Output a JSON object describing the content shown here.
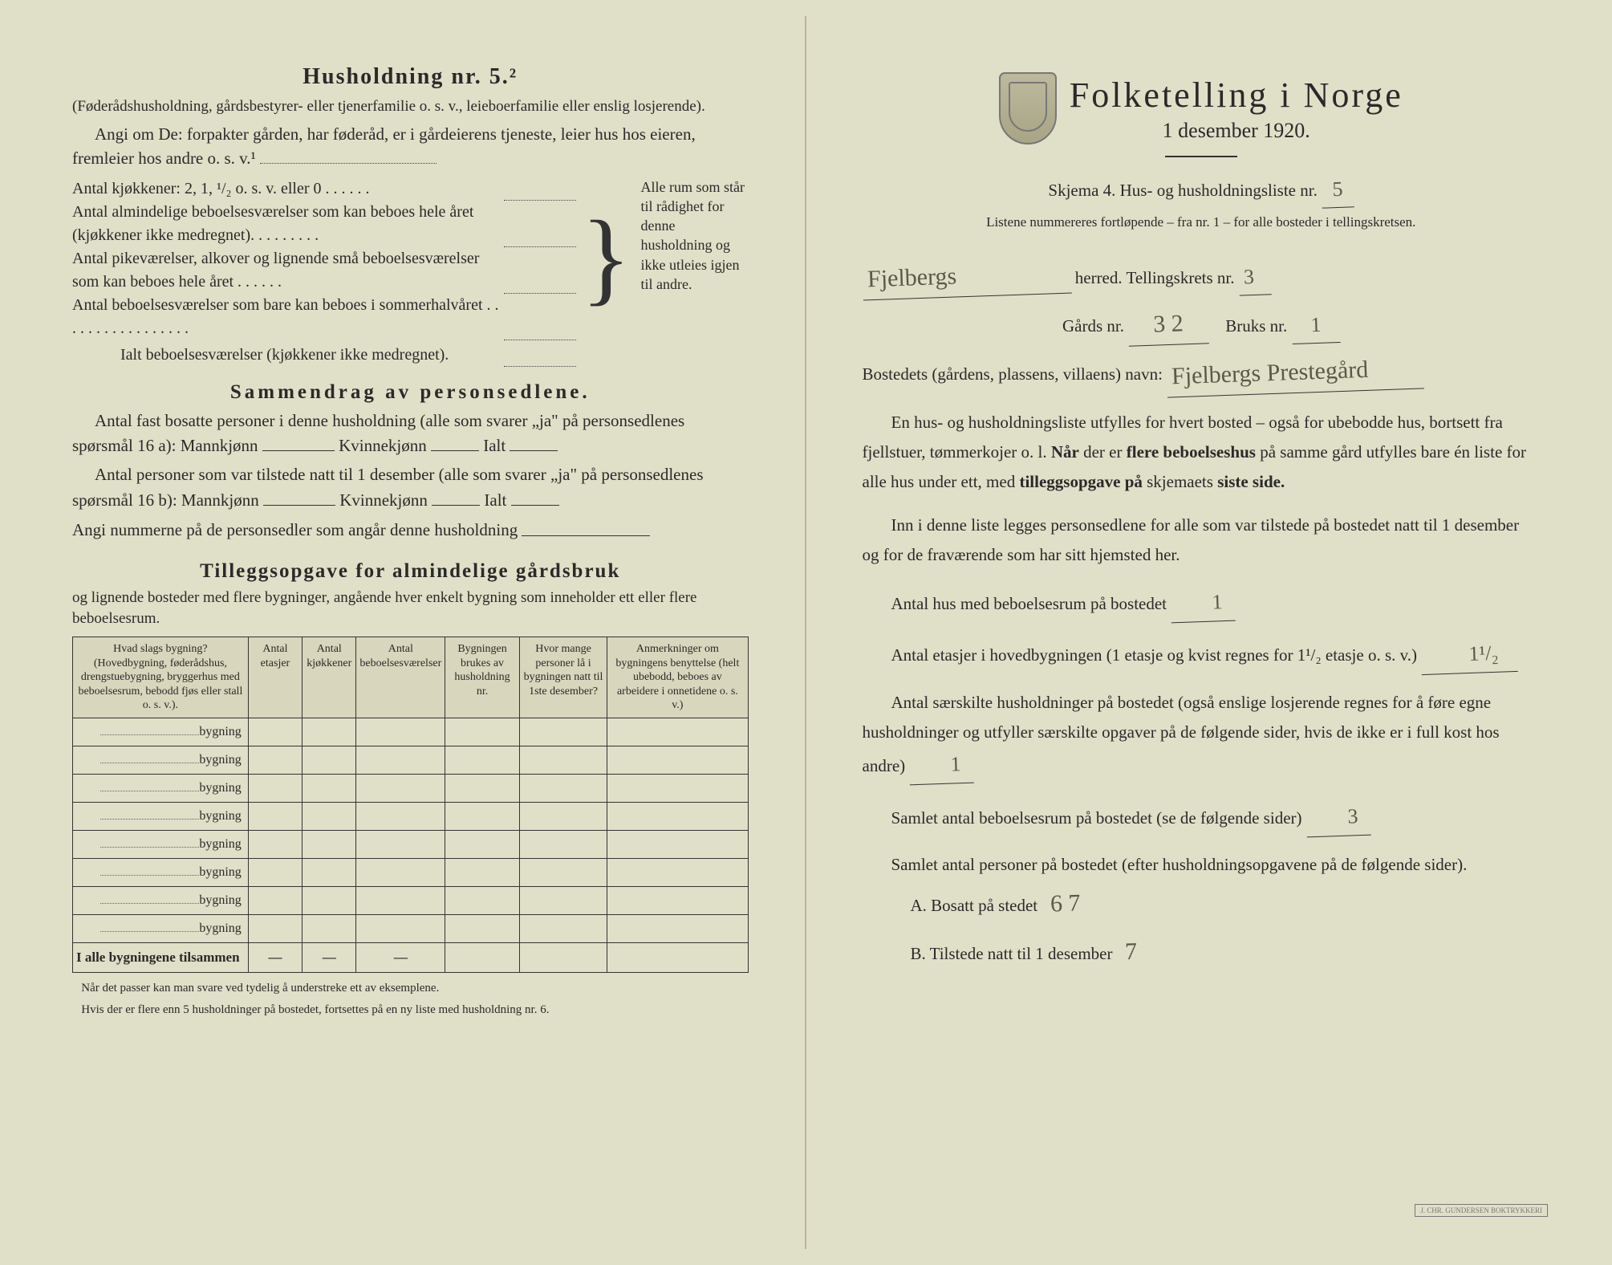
{
  "left": {
    "hushold_title": "Husholdning nr. 5.²",
    "hushold_paren": "(Føderådshusholdning, gårdsbestyrer- eller tjenerfamilie o. s. v., leieboerfamilie eller enslig losjerende).",
    "angi_de": "Angi om De:  forpakter gården, har føderåd, er i gårdeierens tjeneste, leier hus hos eieren, fremleier hos andre o. s. v.¹",
    "bracket_rows": [
      "Antal kjøkkener: 2, 1, ¹/₂ o. s. v. eller 0 . . . . . .",
      "Antal almindelige beboelsesværelser som kan beboes hele året (kjøkkener ikke medregnet). . . . . . . . .",
      "Antal pikeværelser, alkover og lignende små beboelsesværelser som kan beboes hele året . . . . . .",
      "Antal beboelsesværelser som bare kan beboes i sommerhalvåret . . . . . . . . . . . . . . . . .",
      "Ialt beboelsesværelser (kjøkkener ikke medregnet)."
    ],
    "bracket_right": "Alle rum som står til rådighet for denne husholdning og ikke utleies igjen til andre.",
    "samendrag_title": "Sammendrag av personsedlene.",
    "s_line1a": "Antal fast bosatte personer i denne husholdning (alle som svarer „ja\" på personsedlenes spørsmål 16 a): Mannkjønn",
    "s_kv": "Kvinnekjønn",
    "s_ialt": "Ialt",
    "s_line2a": "Antal personer som var tilstede natt til 1 desember (alle som svarer „ja\" på personsedlenes spørsmål 16 b): Mannkjønn",
    "s_line3": "Angi nummerne på de personsedler som angår denne husholdning",
    "tillegg_title": "Tilleggsopgave for almindelige gårdsbruk",
    "tillegg_sub": "og lignende bosteder med flere bygninger, angående hver enkelt bygning som inneholder ett eller flere beboelsesrum.",
    "table_headers": [
      "Hvad slags bygning?\n(Hovedbygning, føderådshus, drengstuebygning, bryggerhus med beboelsesrum, bebodd fjøs eller stall o. s. v.).",
      "Antal etasjer",
      "Antal kjøkkener",
      "Antal beboelsesværelser",
      "Bygningen brukes av husholdning nr.",
      "Hvor mange personer lå i bygningen natt til 1ste desember?",
      "Anmerkninger om bygningens benyttelse (helt ubebodd, beboes av arbeidere i onnetidene o. s. v.)"
    ],
    "byg_row_label": "bygning",
    "byg_row_count": 8,
    "table_total_label": "I alle bygningene tilsammen",
    "footnote1": "Når det passer kan man svare ved tydelig å understreke ett av eksemplene.",
    "footnote2": "Hvis der er flere enn 5 husholdninger på bostedet, fortsettes på en ny liste med husholdning nr. 6."
  },
  "right": {
    "title": "Folketelling i Norge",
    "date": "1 desember 1920.",
    "skjema": "Skjema 4.  Hus- og husholdningsliste nr.",
    "skjema_nr": "5",
    "listene": "Listene nummereres fortløpende – fra nr. 1 – for alle bosteder i tellingskretsen.",
    "herred_handwritten": "Fjelbergs",
    "herred_label": "herred.   Tellingskrets nr.",
    "tellingskrets_nr": "3",
    "gards_label": "Gårds nr.",
    "gards_nr": "3 2",
    "bruks_label": "Bruks nr.",
    "bruks_nr": "1",
    "bosted_label": "Bostedets (gårdens, plassens, villaens) navn:",
    "bosted_name": "Fjelbergs Prestegård",
    "para1": "En hus- og husholdningsliste utfylles for hvert bosted – også for ubebodde hus, bortsett fra fjellstuer, tømmerkojer o. l.  Når der er flere beboelseshus på samme gård utfylles bare én liste for alle hus under ett, med tilleggsopgave på skjemaets siste side.",
    "para2": "Inn i denne liste legges personsedlene for alle som var tilstede på bostedet natt til 1 desember og for de fraværende som har sitt hjemsted her.",
    "q1": "Antal hus med beboelsesrum på bostedet",
    "q1_val": "1",
    "q2a": "Antal etasjer i hovedbygningen (1 etasje og kvist regnes for 1¹/₂ etasje o. s. v.)",
    "q2_val": "1¹/₂",
    "q3a": "Antal særskilte husholdninger på bostedet (også enslige losjerende regnes for å føre egne husholdninger og utfyller særskilte opgaver på de følgende sider, hvis de ikke er i full kost hos andre)",
    "q3_val": "1",
    "q4": "Samlet antal beboelsesrum på bostedet (se de følgende sider)",
    "q4_val": "3",
    "q5": "Samlet antal personer på bostedet (efter husholdningsopgavene på de følgende sider).",
    "ab_a": "A.  Bosatt på stedet",
    "ab_a_val": "6  7",
    "ab_b": "B.  Tilstede natt til 1 desember",
    "ab_b_val": "7",
    "printer": "J. CHR. GUNDERSEN BOKTRYKKERI"
  },
  "colors": {
    "paper": "#e0dfc8",
    "ink": "#2a2a2a",
    "hand": "#5a5a48",
    "rule": "#333333"
  }
}
